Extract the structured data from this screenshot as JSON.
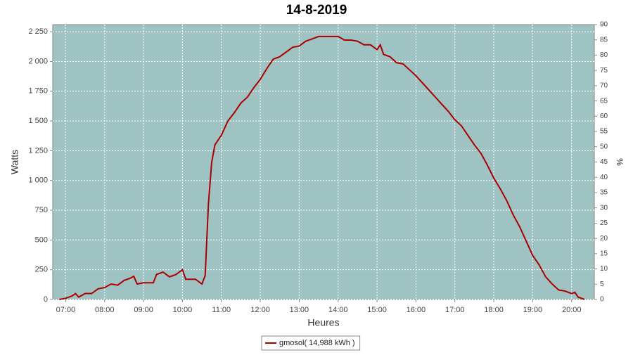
{
  "chart_data": {
    "type": "line",
    "title": "14-8-2019",
    "x_label": "Heures",
    "y_label": "Watts",
    "y2_label": "%",
    "x": [
      "06:50",
      "07:00",
      "07:10",
      "07:15",
      "07:20",
      "07:30",
      "07:40",
      "07:50",
      "08:00",
      "08:10",
      "08:20",
      "08:30",
      "08:40",
      "08:45",
      "08:50",
      "09:00",
      "09:10",
      "09:15",
      "09:20",
      "09:30",
      "09:40",
      "09:50",
      "10:00",
      "10:05",
      "10:20",
      "10:30",
      "10:35",
      "10:40",
      "10:45",
      "10:50",
      "11:00",
      "11:10",
      "11:20",
      "11:30",
      "11:40",
      "11:50",
      "12:00",
      "12:10",
      "12:20",
      "12:30",
      "12:40",
      "12:50",
      "13:00",
      "13:10",
      "13:20",
      "13:30",
      "13:40",
      "13:50",
      "14:00",
      "14:10",
      "14:20",
      "14:30",
      "14:40",
      "14:50",
      "15:00",
      "15:05",
      "15:10",
      "15:20",
      "15:30",
      "15:40",
      "15:50",
      "16:00",
      "16:10",
      "16:20",
      "16:30",
      "16:40",
      "16:50",
      "17:00",
      "17:10",
      "17:20",
      "17:30",
      "17:40",
      "17:50",
      "18:00",
      "18:10",
      "18:20",
      "18:30",
      "18:40",
      "18:50",
      "19:00",
      "19:10",
      "19:20",
      "19:30",
      "19:40",
      "19:50",
      "20:00",
      "20:05",
      "20:10",
      "20:20"
    ],
    "series": [
      {
        "name": "gmosol( 14,988 kWh )",
        "color": "#aa0000",
        "values": [
          0,
          10,
          30,
          50,
          20,
          50,
          50,
          90,
          100,
          130,
          120,
          160,
          180,
          195,
          130,
          140,
          140,
          140,
          210,
          230,
          190,
          210,
          250,
          170,
          170,
          130,
          200,
          800,
          1150,
          1300,
          1380,
          1500,
          1570,
          1650,
          1700,
          1780,
          1850,
          1940,
          2020,
          2040,
          2080,
          2120,
          2130,
          2170,
          2190,
          2210,
          2210,
          2210,
          2210,
          2180,
          2180,
          2170,
          2140,
          2140,
          2100,
          2140,
          2060,
          2040,
          1990,
          1980,
          1930,
          1880,
          1820,
          1760,
          1700,
          1640,
          1580,
          1510,
          1460,
          1380,
          1300,
          1230,
          1130,
          1020,
          930,
          830,
          710,
          610,
          490,
          370,
          290,
          190,
          130,
          80,
          70,
          50,
          60,
          20,
          0
        ]
      }
    ],
    "xlim": [
      "06:40",
      "20:35"
    ],
    "xticks": [
      "07:00",
      "08:00",
      "09:00",
      "10:00",
      "11:00",
      "12:00",
      "13:00",
      "14:00",
      "15:00",
      "16:00",
      "17:00",
      "18:00",
      "19:00",
      "20:00"
    ],
    "ylim": [
      0,
      2310
    ],
    "yticks": [
      0,
      250,
      500,
      750,
      {
        "value": 1000,
        "label": "1 000"
      },
      {
        "value": 1250,
        "label": "1 250"
      },
      {
        "value": 1500,
        "label": "1 500"
      },
      {
        "value": 1750,
        "label": "1 750"
      },
      {
        "value": 2000,
        "label": "2 000"
      },
      {
        "value": 2250,
        "label": "2 250"
      }
    ],
    "y2lim": [
      0,
      90
    ],
    "y2ticks": [
      0,
      5,
      10,
      15,
      20,
      25,
      30,
      35,
      40,
      45,
      50,
      55,
      60,
      65,
      70,
      75,
      80,
      85,
      90
    ],
    "grid": true,
    "background": "#9fc3c3",
    "legend": "bottom"
  }
}
